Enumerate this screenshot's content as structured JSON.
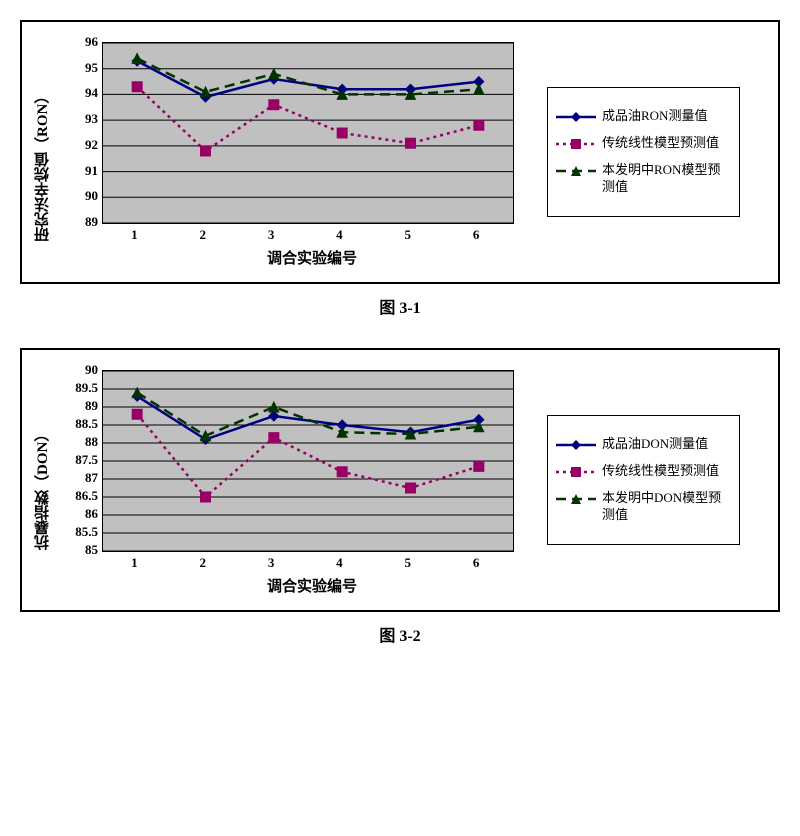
{
  "plot_bg": "#c0c0c0",
  "grid_color": "#000000",
  "chart1": {
    "caption": "图 3-1",
    "yaxis_title": "研究法辛烷值（RON）",
    "xaxis_title": "调合实验编号",
    "ylim": [
      89,
      96
    ],
    "ytick_step": 1,
    "x_categories": [
      1,
      2,
      3,
      4,
      5,
      6
    ],
    "series": [
      {
        "name": "成品油RON测量值",
        "marker": "diamond",
        "dash": "none",
        "color": "#000080",
        "values": [
          95.3,
          93.9,
          94.6,
          94.2,
          94.2,
          94.5
        ]
      },
      {
        "name": "传统线性模型预测值",
        "marker": "square",
        "dash": "dot",
        "color": "#990066",
        "values": [
          94.3,
          91.8,
          93.6,
          92.5,
          92.1,
          92.8
        ]
      },
      {
        "name": "本发明中RON模型预测值",
        "marker": "triangle",
        "dash": "dash",
        "color": "#003300",
        "values": [
          95.4,
          94.1,
          94.8,
          94.0,
          94.0,
          94.2
        ]
      }
    ]
  },
  "chart2": {
    "caption": "图 3-2",
    "yaxis_title": "抗暴指数（DON）",
    "xaxis_title": "调合实验编号",
    "ylim": [
      85,
      90
    ],
    "ytick_step": 0.5,
    "x_categories": [
      1,
      2,
      3,
      4,
      5,
      6
    ],
    "series": [
      {
        "name": "成品油DON测量值",
        "marker": "diamond",
        "dash": "none",
        "color": "#000080",
        "values": [
          89.3,
          88.1,
          88.75,
          88.5,
          88.3,
          88.65
        ]
      },
      {
        "name": "传统线性模型预测值",
        "marker": "square",
        "dash": "dot",
        "color": "#990066",
        "values": [
          88.8,
          86.5,
          88.15,
          87.2,
          86.75,
          87.35
        ]
      },
      {
        "name": "本发明中DON模型预测值",
        "marker": "triangle",
        "dash": "dash",
        "color": "#003300",
        "values": [
          89.4,
          88.2,
          89.0,
          88.3,
          88.25,
          88.45
        ]
      }
    ]
  }
}
